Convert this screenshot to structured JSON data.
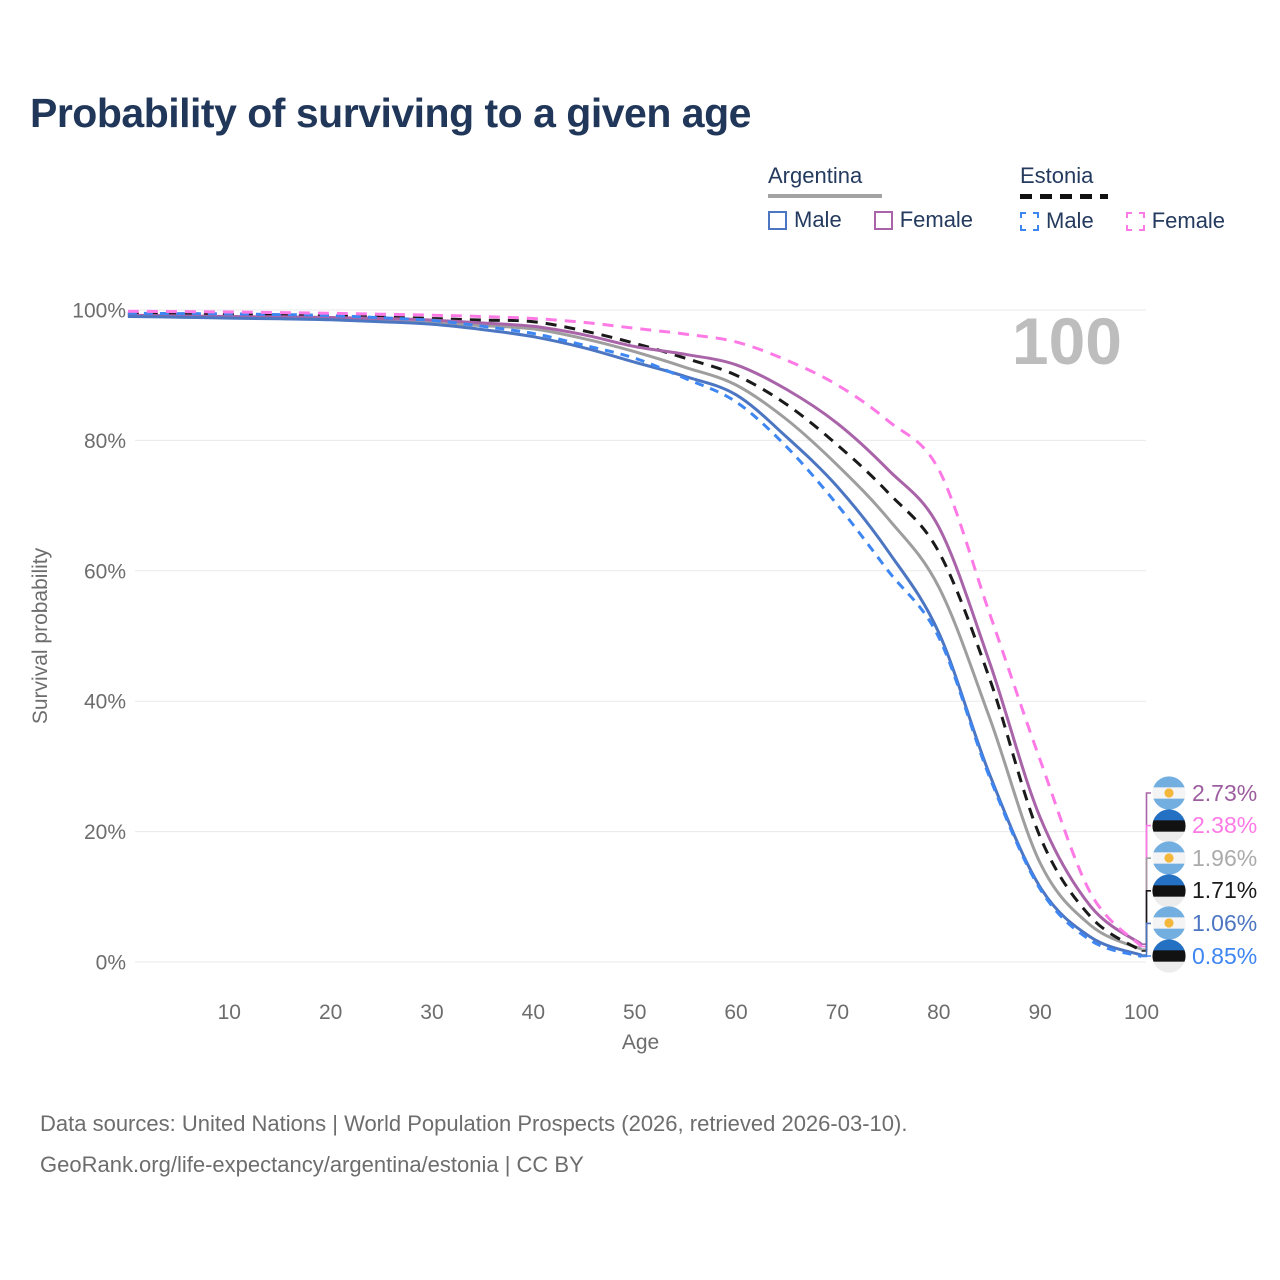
{
  "title": "Probability of surviving to a given age",
  "legend": {
    "argentina": {
      "title": "Argentina",
      "male_label": "Male",
      "female_label": "Female"
    },
    "estonia": {
      "title": "Estonia",
      "male_label": "Male",
      "female_label": "Female"
    }
  },
  "annotation": {
    "age_cursor": "100"
  },
  "flags": {
    "argentina": {
      "stripes": [
        "#72aee0",
        "#f4f4f4",
        "#72aee0"
      ],
      "sun": "#f3b73c"
    },
    "estonia": {
      "stripes": [
        "#2470c2",
        "#121212",
        "#ececec"
      ]
    }
  },
  "chart_data": {
    "type": "line",
    "title": "Probability of surviving to a given age",
    "xlabel": "Age",
    "ylabel": "Survival probability",
    "xlim": [
      0,
      100
    ],
    "ylim": [
      0,
      100
    ],
    "grid": "horizontal",
    "legend_position": "top-right",
    "x_ticks": [
      10,
      20,
      30,
      40,
      50,
      60,
      70,
      80,
      90,
      100
    ],
    "y_ticks": [
      {
        "value": 0,
        "label": "0%"
      },
      {
        "value": 20,
        "label": "20%"
      },
      {
        "value": 40,
        "label": "40%"
      },
      {
        "value": 60,
        "label": "60%"
      },
      {
        "value": 80,
        "label": "80%"
      },
      {
        "value": 100,
        "label": "100%"
      }
    ],
    "x": [
      0,
      5,
      10,
      15,
      20,
      25,
      30,
      35,
      40,
      45,
      50,
      55,
      60,
      65,
      70,
      75,
      80,
      85,
      90,
      95,
      100
    ],
    "series": [
      {
        "id": "argentina-female",
        "name": "Argentina Female",
        "flag": "argentina",
        "line_color": "#a964a9",
        "label_color": "#9c5d9e",
        "dash": null,
        "end_label": "2.73%",
        "values": [
          99.2,
          99.1,
          99.0,
          98.95,
          98.85,
          98.7,
          98.45,
          98.0,
          97.5,
          96.2,
          94.4,
          93.2,
          91.6,
          87.8,
          82.6,
          75.5,
          66.7,
          46.0,
          22.2,
          8.5,
          2.73
        ]
      },
      {
        "id": "estonia-female",
        "name": "Estonia Female",
        "flag": "estonia",
        "line_color": "#fd7ae6",
        "label_color": "#fd7ae6",
        "dash": [
          11,
          8
        ],
        "end_label": "2.38%",
        "values": [
          99.8,
          99.75,
          99.7,
          99.6,
          99.5,
          99.35,
          99.2,
          99.0,
          98.7,
          98.1,
          97.2,
          96.3,
          95.1,
          92.3,
          88.5,
          83.0,
          75.5,
          53.5,
          31.0,
          10.5,
          2.38
        ]
      },
      {
        "id": "argentina-all",
        "name": "Argentina",
        "flag": "argentina",
        "line_color": "#9e9e9e",
        "label_color": "#ababab",
        "dash": null,
        "end_label": "1.96%",
        "values": [
          99.1,
          99.0,
          98.85,
          98.7,
          98.55,
          98.3,
          98.0,
          97.6,
          97.1,
          95.6,
          93.6,
          91.2,
          88.5,
          83.2,
          76.2,
          68.0,
          57.5,
          37.5,
          15.2,
          5.6,
          1.96
        ]
      },
      {
        "id": "estonia-all",
        "name": "Estonia",
        "flag": "estonia",
        "line_color": "#1a1a1a",
        "label_color": "#1a1a1a",
        "dash": [
          11,
          8
        ],
        "end_label": "1.71%",
        "values": [
          99.4,
          99.35,
          99.3,
          99.2,
          99.1,
          98.9,
          98.7,
          98.45,
          98.2,
          96.8,
          94.9,
          92.6,
          90.0,
          85.5,
          79.3,
          72.0,
          62.9,
          43.5,
          19.2,
          6.9,
          1.71
        ]
      },
      {
        "id": "argentina-male",
        "name": "Argentina Male",
        "flag": "argentina",
        "line_color": "#4c76c2",
        "label_color": "#4c76c2",
        "dash": null,
        "end_label": "1.06%",
        "values": [
          99.0,
          98.9,
          98.75,
          98.65,
          98.5,
          98.2,
          97.8,
          97.0,
          95.9,
          94.2,
          92.0,
          89.8,
          87.0,
          80.5,
          72.9,
          63.0,
          50.5,
          28.8,
          11.5,
          3.8,
          1.06
        ]
      },
      {
        "id": "estonia-male",
        "name": "Estonia Male",
        "flag": "estonia",
        "line_color": "#3e86f2",
        "label_color": "#3e86f2",
        "dash": [
          9,
          7
        ],
        "end_label": "0.85%",
        "values": [
          99.5,
          99.45,
          99.4,
          99.3,
          99.15,
          98.8,
          98.4,
          97.5,
          96.4,
          94.6,
          92.6,
          89.5,
          85.9,
          79.0,
          70.1,
          60.0,
          49.8,
          28.4,
          11.2,
          3.3,
          0.85
        ]
      }
    ]
  },
  "footer": {
    "line1": "Data sources: United Nations | World Population Prospects (2026, retrieved 2026-03-10).",
    "line2": "GeoRank.org/life-expectancy/argentina/estonia | CC BY"
  }
}
